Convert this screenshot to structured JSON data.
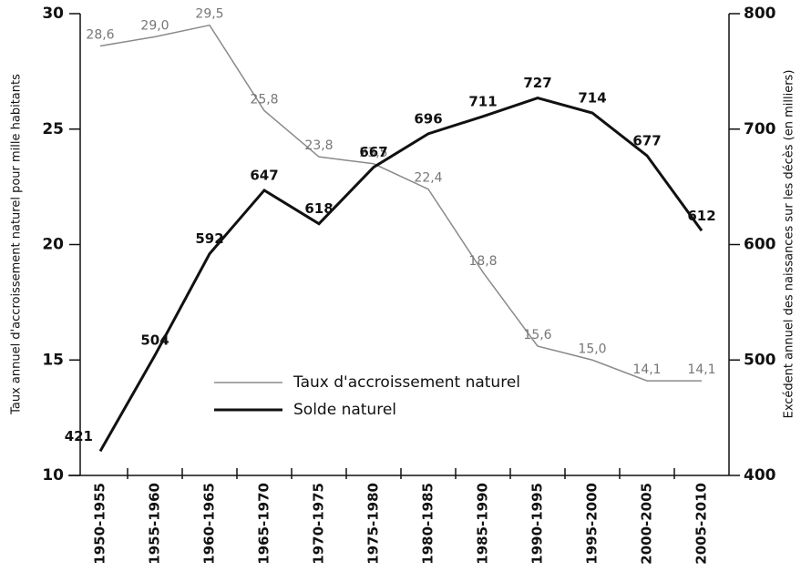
{
  "chart_data": {
    "type": "line",
    "categories": [
      "1950-1955",
      "1955-1960",
      "1960-1965",
      "1965-1970",
      "1970-1975",
      "1975-1980",
      "1980-1985",
      "1985-1990",
      "1990-1995",
      "1995-2000",
      "2000-2005",
      "2005-2010"
    ],
    "y_label": "Taux annuel d'accroissement naturel pour mille habitants",
    "y2_label": "Excédent annuel des naissances sur les décès (en milliers)",
    "ylim": [
      10,
      30
    ],
    "yticks": [
      10,
      15,
      20,
      25,
      30
    ],
    "y2lim": [
      400,
      800
    ],
    "y2ticks": [
      400,
      500,
      600,
      700,
      800
    ],
    "legend": "lower left",
    "series": [
      {
        "name": "Taux d'accroissement naturel",
        "color": "#8a8a8a",
        "values": [
          28.6,
          29.0,
          29.5,
          25.8,
          23.8,
          23.5,
          22.4,
          18.8,
          15.6,
          15.0,
          14.1,
          14.1
        ],
        "value_labels": [
          "28,6",
          "29,0",
          "29,5",
          "25,8",
          "23,8",
          "23,5",
          "22,4",
          "18,8",
          "15,6",
          "15,0",
          "14,1",
          "14,1"
        ]
      },
      {
        "name": "Solde naturel",
        "color": "#111111",
        "axis": "y2",
        "values": [
          421,
          504,
          592,
          647,
          618,
          667,
          696,
          711,
          727,
          714,
          677,
          612
        ]
      }
    ]
  }
}
